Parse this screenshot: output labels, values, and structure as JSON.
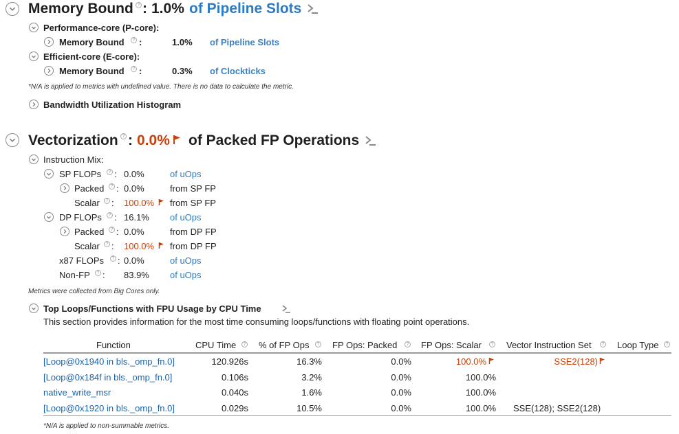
{
  "memory": {
    "title": "Memory Bound",
    "value": "1.0%",
    "unit": "of Pipeline Slots",
    "pcore_label": "Performance-core (P-core):",
    "pcore_metric": "Memory Bound",
    "pcore_value": "1.0%",
    "pcore_unit": "of Pipeline Slots",
    "ecore_label": "Efficient-core (E-core):",
    "ecore_metric": "Memory Bound",
    "ecore_value": "0.3%",
    "ecore_unit": "of Clockticks",
    "note": "*N/A is applied to metrics with undefined value. There is no data to calculate the metric.",
    "histogram_label": "Bandwidth Utilization Histogram"
  },
  "vectorization": {
    "title": "Vectorization",
    "value": "0.0%",
    "unit": "of Packed FP Operations",
    "mix_label": "Instruction Mix:",
    "rows": [
      {
        "label": "SP FLOPs",
        "value": "0.0%",
        "unit": "of uOps"
      },
      {
        "label": "Packed",
        "value": "0.0%",
        "unit": "from SP FP"
      },
      {
        "label": "Scalar",
        "value": "100.0%",
        "unit": "from SP FP"
      },
      {
        "label": "DP FLOPs",
        "value": "16.1%",
        "unit": "of uOps"
      },
      {
        "label": "Packed",
        "value": "0.0%",
        "unit": "from DP FP"
      },
      {
        "label": "Scalar",
        "value": "100.0%",
        "unit": "from DP FP"
      },
      {
        "label": "x87 FLOPs",
        "value": "0.0%",
        "unit": "of uOps"
      },
      {
        "label": "Non-FP",
        "value": "83.9%",
        "unit": "of uOps"
      }
    ],
    "colon": ":",
    "big_cores_note": "Metrics were collected from Big Cores only."
  },
  "top_loops": {
    "title": "Top Loops/Functions with FPU Usage by CPU Time",
    "description": "This section provides information for the most time consuming loops/functions with floating point operations.",
    "columns": [
      "Function",
      "CPU Time",
      "% of FP Ops",
      "FP Ops: Packed",
      "FP Ops: Scalar",
      "Vector Instruction Set",
      "Loop Type"
    ],
    "rows": [
      {
        "function": "[Loop@0x1940 in bls._omp_fn.0]",
        "cpu_time": "120.926s",
        "fp_ops": "16.3%",
        "packed": "0.0%",
        "scalar": "100.0%",
        "isa": "SSE2(128)",
        "loop_type": ""
      },
      {
        "function": "[Loop@0x184f in bls._omp_fn.0]",
        "cpu_time": "0.106s",
        "fp_ops": "3.2%",
        "packed": "0.0%",
        "scalar": "100.0%",
        "isa": "",
        "loop_type": ""
      },
      {
        "function": "native_write_msr",
        "cpu_time": "0.040s",
        "fp_ops": "1.6%",
        "packed": "0.0%",
        "scalar": "100.0%",
        "isa": "",
        "loop_type": ""
      },
      {
        "function": "[Loop@0x1920 in bls._omp_fn.0]",
        "cpu_time": "0.029s",
        "fp_ops": "10.5%",
        "packed": "0.0%",
        "scalar": "100.0%",
        "isa": "SSE(128); SSE2(128)",
        "loop_type": ""
      }
    ],
    "note": "*N/A is applied to non-summable metrics."
  },
  "icons": [
    "collapse-icon",
    "expand-icon",
    "help-icon",
    "flag-icon",
    "prompt-icon"
  ],
  "colors": {
    "accent_blue": "#2f7bbf",
    "link_blue": "#1a63ad",
    "warn_red": "#c8400b"
  }
}
